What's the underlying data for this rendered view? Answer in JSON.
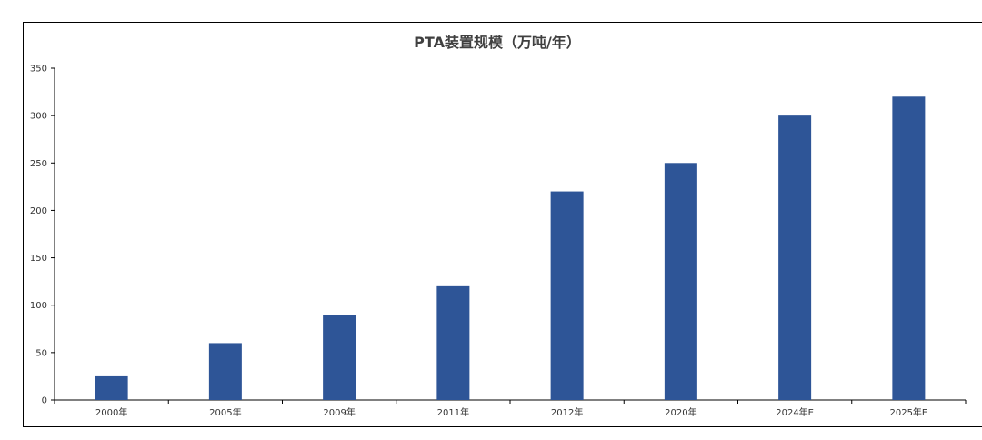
{
  "chart_data": {
    "type": "bar",
    "title": "PTA装置规模（万吨/年）",
    "xlabel": "",
    "ylabel": "",
    "categories": [
      "2000年",
      "2005年",
      "2009年",
      "2011年",
      "2012年",
      "2020年",
      "2024年E",
      "2025年E"
    ],
    "values": [
      25,
      60,
      90,
      120,
      220,
      250,
      300,
      320
    ],
    "ylim": [
      0,
      350
    ],
    "yticks": [
      0,
      50,
      100,
      150,
      200,
      250,
      300,
      350
    ],
    "grid": false,
    "legend": "none",
    "bar_color": "#2E5597"
  }
}
